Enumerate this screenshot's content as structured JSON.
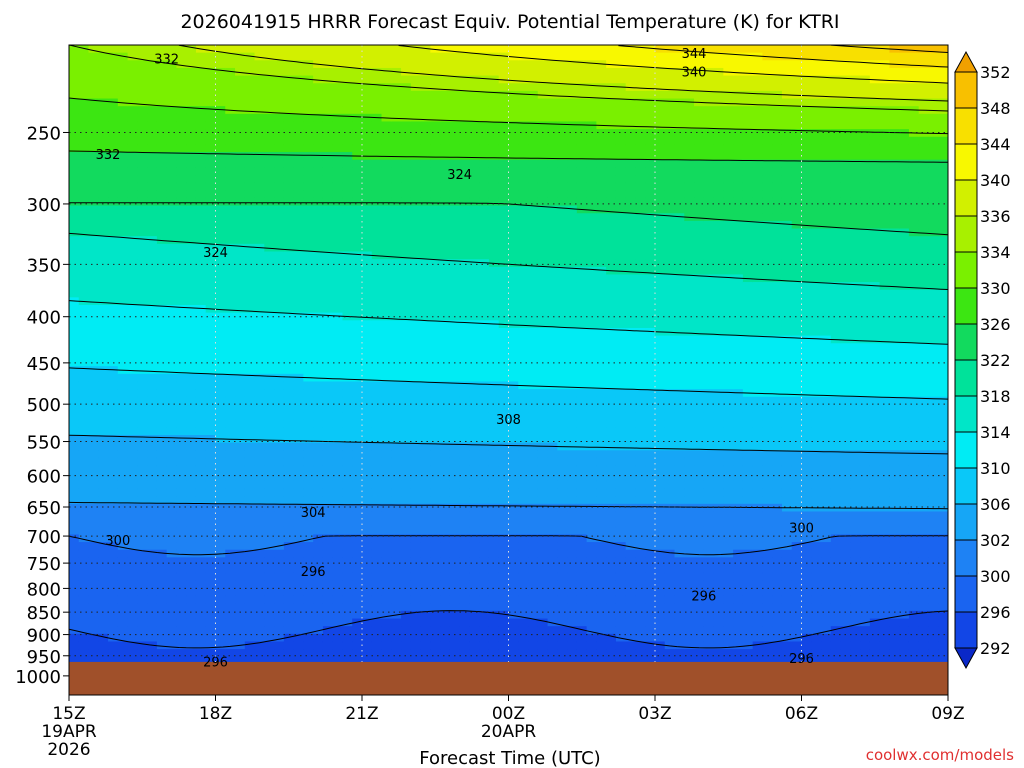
{
  "chart_data": {
    "type": "heatmap",
    "title": "2026041915 HRRR Forecast Equiv. Potential Temperature (K) for KTRI",
    "xlabel": "Forecast Time (UTC)",
    "ylabel": "",
    "x_ticks": [
      {
        "label": "15Z",
        "sub1": "19APR",
        "sub2": "2026",
        "hour": 0
      },
      {
        "label": "18Z",
        "sub1": "",
        "sub2": "",
        "hour": 3
      },
      {
        "label": "21Z",
        "sub1": "",
        "sub2": "",
        "hour": 6
      },
      {
        "label": "00Z",
        "sub1": "20APR",
        "sub2": "",
        "hour": 9
      },
      {
        "label": "03Z",
        "sub1": "",
        "sub2": "",
        "hour": 12
      },
      {
        "label": "06Z",
        "sub1": "",
        "sub2": "",
        "hour": 15
      },
      {
        "label": "09Z",
        "sub1": "",
        "sub2": "",
        "hour": 18
      }
    ],
    "xlim": [
      0,
      18
    ],
    "y_ticks": [
      250,
      300,
      350,
      400,
      450,
      500,
      550,
      600,
      650,
      700,
      750,
      800,
      850,
      900,
      950,
      1000
    ],
    "ylim": [
      1050,
      200
    ],
    "y_scale": "log",
    "grid": true,
    "ground_level_hPa": 965,
    "colorbar": {
      "levels": [
        292,
        296,
        300,
        302,
        306,
        310,
        314,
        318,
        322,
        326,
        330,
        334,
        336,
        340,
        344,
        348,
        352
      ],
      "colors": [
        "#0a28c8",
        "#1246e6",
        "#1a64f0",
        "#1e82f4",
        "#16a6f6",
        "#0ac8f8",
        "#00ecf4",
        "#00e6c8",
        "#00e29a",
        "#12da5e",
        "#3ce612",
        "#7af000",
        "#a8f000",
        "#d2f000",
        "#f8f800",
        "#f8e000",
        "#f8c000",
        "#f0a000"
      ]
    },
    "contour_labels": [
      {
        "text": "332",
        "hour": 2.0,
        "hPa": 207
      },
      {
        "text": "332",
        "hour": 0.8,
        "hPa": 264
      },
      {
        "text": "344",
        "hour": 12.8,
        "hPa": 204
      },
      {
        "text": "340",
        "hour": 12.8,
        "hPa": 214
      },
      {
        "text": "324",
        "hour": 8.0,
        "hPa": 278
      },
      {
        "text": "324",
        "hour": 3.0,
        "hPa": 339
      },
      {
        "text": "308",
        "hour": 9.0,
        "hPa": 519
      },
      {
        "text": "304",
        "hour": 5.0,
        "hPa": 658
      },
      {
        "text": "300",
        "hour": 1.0,
        "hPa": 707
      },
      {
        "text": "300",
        "hour": 15.0,
        "hPa": 685
      },
      {
        "text": "296",
        "hour": 5.0,
        "hPa": 765
      },
      {
        "text": "296",
        "hour": 13.0,
        "hPa": 815
      },
      {
        "text": "296",
        "hour": 3.0,
        "hPa": 964
      },
      {
        "text": "296",
        "hour": 15.0,
        "hPa": 955
      }
    ]
  },
  "credit": "coolwx.com/models"
}
